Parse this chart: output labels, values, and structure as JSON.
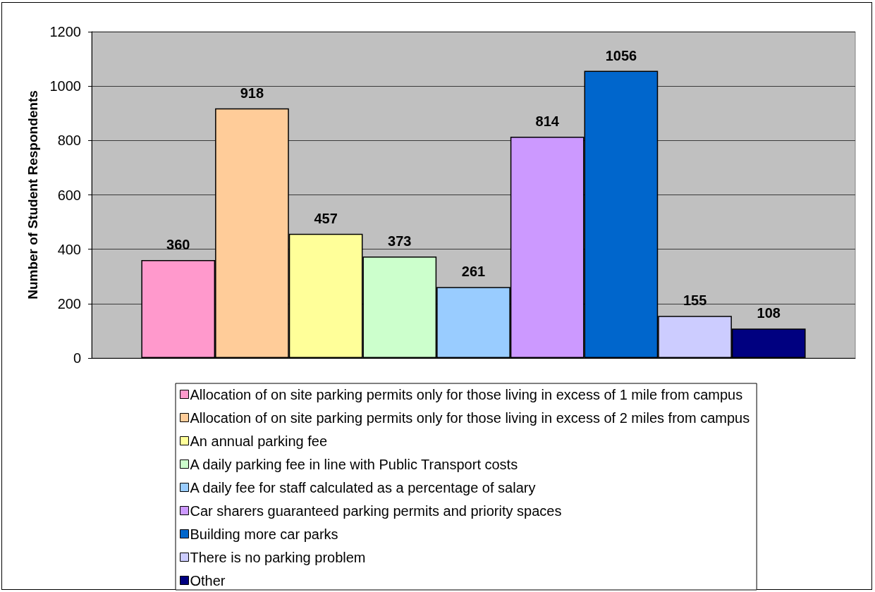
{
  "chart_data": {
    "type": "bar",
    "ylabel": "Number of Student Respondents",
    "categories": [
      null
    ],
    "series": [
      {
        "name": "Allocation of on site parking permits only for those living in excess of 1 mile from campus",
        "color": "#ff99cc",
        "values": [
          360
        ]
      },
      {
        "name": "Allocation of on site parking permits only for those living in excess of 2 miles from campus",
        "color": "#ffcc99",
        "values": [
          918
        ]
      },
      {
        "name": "An annual parking fee",
        "color": "#ffff99",
        "values": [
          457
        ]
      },
      {
        "name": "A daily parking fee in line with Public Transport costs",
        "color": "#ccffcc",
        "values": [
          373
        ]
      },
      {
        "name": "A daily fee for staff calculated as a percentage of salary",
        "color": "#99ccff",
        "values": [
          261
        ]
      },
      {
        "name": "Car sharers guaranteed parking permits and priority spaces",
        "color": "#cc99ff",
        "values": [
          814
        ]
      },
      {
        "name": "Building more car parks",
        "color": "#0066cc",
        "values": [
          1056
        ]
      },
      {
        "name": "There is no parking problem",
        "color": "#ccccff",
        "values": [
          155
        ]
      },
      {
        "name": "Other",
        "color": "#000080",
        "values": [
          108
        ]
      }
    ],
    "ylim": [
      0,
      1200
    ],
    "yticks": [
      0,
      200,
      400,
      600,
      800,
      1000,
      1200
    ],
    "grid": "y",
    "legend": "bottom",
    "data_labels": true
  }
}
